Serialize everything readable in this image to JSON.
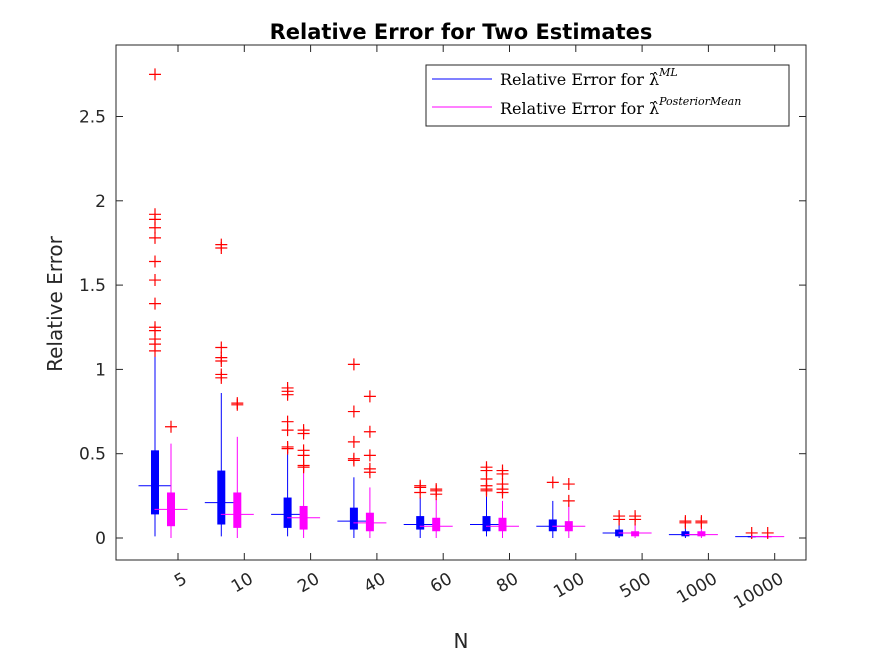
{
  "chart_data": {
    "type": "boxplot",
    "title": "Relative Error for Two Estimates",
    "xlabel": "N",
    "ylabel": "Relative Error",
    "categories": [
      "5",
      "10",
      "20",
      "40",
      "60",
      "80",
      "100",
      "500",
      "1000",
      "10000"
    ],
    "ylim": [
      -0.14,
      2.9
    ],
    "yticks": [
      0,
      0.5,
      1,
      1.5,
      2,
      2.5
    ],
    "ytick_labels": [
      "0",
      "0.5",
      "1",
      "1.5",
      "2",
      "2.5"
    ],
    "legend": {
      "placement": "top-right",
      "entries": [
        {
          "prefix": "Relative Error for ",
          "symbol": "λ̂",
          "superscript": "ML",
          "color": "#0000ff"
        },
        {
          "prefix": "Relative Error for ",
          "symbol": "λ̂",
          "superscript": "PosteriorMean",
          "color": "#ff00ff"
        }
      ]
    },
    "series": [
      {
        "name": "ML",
        "color": "#0000ff",
        "boxes": [
          {
            "min": 0.01,
            "q1": 0.14,
            "median": 0.31,
            "q3": 0.52,
            "max": 1.09,
            "outliers": [
              2.75,
              1.92,
              1.89,
              1.84,
              1.78,
              1.64,
              1.53,
              1.39,
              1.25,
              1.23,
              1.18,
              1.15,
              1.11
            ]
          },
          {
            "min": 0.01,
            "q1": 0.08,
            "median": 0.21,
            "q3": 0.4,
            "max": 0.86,
            "outliers": [
              1.74,
              1.72,
              1.13,
              1.07,
              1.05,
              0.97,
              0.95
            ]
          },
          {
            "min": 0.01,
            "q1": 0.06,
            "median": 0.14,
            "q3": 0.24,
            "max": 0.51,
            "outliers": [
              0.89,
              0.87,
              0.85,
              0.69,
              0.64,
              0.54,
              0.53
            ]
          },
          {
            "min": 0.0,
            "q1": 0.05,
            "median": 0.1,
            "q3": 0.18,
            "max": 0.36,
            "outliers": [
              1.03,
              0.75,
              0.57,
              0.47,
              0.46
            ]
          },
          {
            "min": 0.0,
            "q1": 0.05,
            "median": 0.08,
            "q3": 0.13,
            "max": 0.24,
            "outliers": [
              0.31,
              0.3,
              0.27
            ]
          },
          {
            "min": 0.01,
            "q1": 0.04,
            "median": 0.08,
            "q3": 0.13,
            "max": 0.25,
            "outliers": [
              0.42,
              0.4,
              0.35,
              0.31,
              0.29,
              0.28
            ]
          },
          {
            "min": 0.0,
            "q1": 0.04,
            "median": 0.07,
            "q3": 0.11,
            "max": 0.22,
            "outliers": [
              0.33
            ]
          },
          {
            "min": 0.0,
            "q1": 0.01,
            "median": 0.03,
            "q3": 0.05,
            "max": 0.09,
            "outliers": [
              0.13,
              0.11
            ]
          },
          {
            "min": 0.0,
            "q1": 0.01,
            "median": 0.02,
            "q3": 0.04,
            "max": 0.07,
            "outliers": [
              0.1,
              0.09
            ]
          },
          {
            "min": 0.0,
            "q1": 0.004,
            "median": 0.008,
            "q3": 0.012,
            "max": 0.02,
            "outliers": [
              0.03
            ]
          }
        ]
      },
      {
        "name": "PosteriorMean",
        "color": "#ff00ff",
        "boxes": [
          {
            "min": 0.0,
            "q1": 0.07,
            "median": 0.17,
            "q3": 0.27,
            "max": 0.56,
            "outliers": [
              0.66
            ]
          },
          {
            "min": 0.0,
            "q1": 0.06,
            "median": 0.14,
            "q3": 0.27,
            "max": 0.6,
            "outliers": [
              0.8,
              0.79
            ]
          },
          {
            "min": 0.0,
            "q1": 0.05,
            "median": 0.12,
            "q3": 0.19,
            "max": 0.4,
            "outliers": [
              0.64,
              0.62,
              0.52,
              0.49,
              0.43,
              0.42
            ]
          },
          {
            "min": 0.0,
            "q1": 0.04,
            "median": 0.09,
            "q3": 0.15,
            "max": 0.3,
            "outliers": [
              0.84,
              0.63,
              0.49,
              0.41,
              0.39
            ]
          },
          {
            "min": 0.0,
            "q1": 0.04,
            "median": 0.07,
            "q3": 0.12,
            "max": 0.23,
            "outliers": [
              0.29,
              0.28,
              0.26
            ]
          },
          {
            "min": 0.0,
            "q1": 0.04,
            "median": 0.07,
            "q3": 0.12,
            "max": 0.22,
            "outliers": [
              0.4,
              0.38,
              0.32,
              0.29,
              0.27
            ]
          },
          {
            "min": 0.0,
            "q1": 0.04,
            "median": 0.07,
            "q3": 0.1,
            "max": 0.2,
            "outliers": [
              0.32,
              0.22
            ]
          },
          {
            "min": 0.0,
            "q1": 0.01,
            "median": 0.03,
            "q3": 0.04,
            "max": 0.09,
            "outliers": [
              0.13,
              0.11
            ]
          },
          {
            "min": 0.0,
            "q1": 0.01,
            "median": 0.02,
            "q3": 0.04,
            "max": 0.07,
            "outliers": [
              0.1,
              0.09
            ]
          },
          {
            "min": 0.0,
            "q1": 0.004,
            "median": 0.008,
            "q3": 0.012,
            "max": 0.02,
            "outliers": [
              0.03
            ]
          }
        ]
      }
    ]
  }
}
